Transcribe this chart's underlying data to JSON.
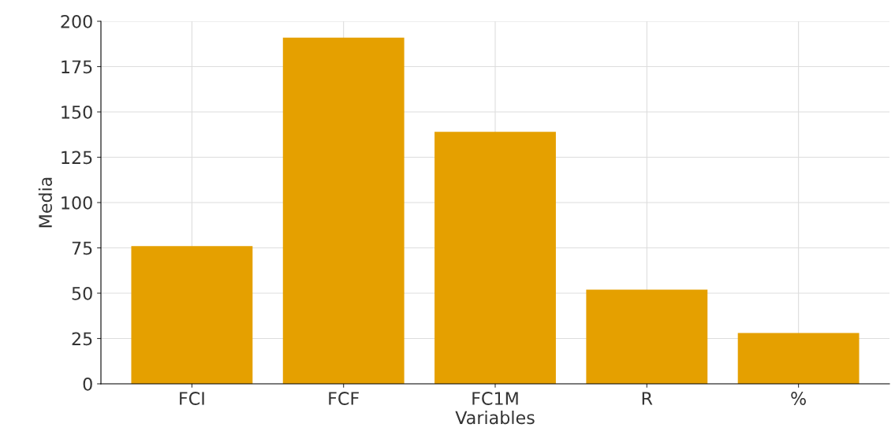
{
  "chart_data": {
    "type": "bar",
    "xlabel": "Variables",
    "ylabel": "Media",
    "categories": [
      "FCI",
      "FCF",
      "FC1M",
      "R",
      "%"
    ],
    "values": [
      76,
      191,
      139,
      52,
      28
    ],
    "color": "#e5a000",
    "ylim": [
      0,
      200
    ],
    "yticks": [
      0,
      25,
      50,
      75,
      100,
      125,
      150,
      175,
      200
    ],
    "grid": true
  }
}
